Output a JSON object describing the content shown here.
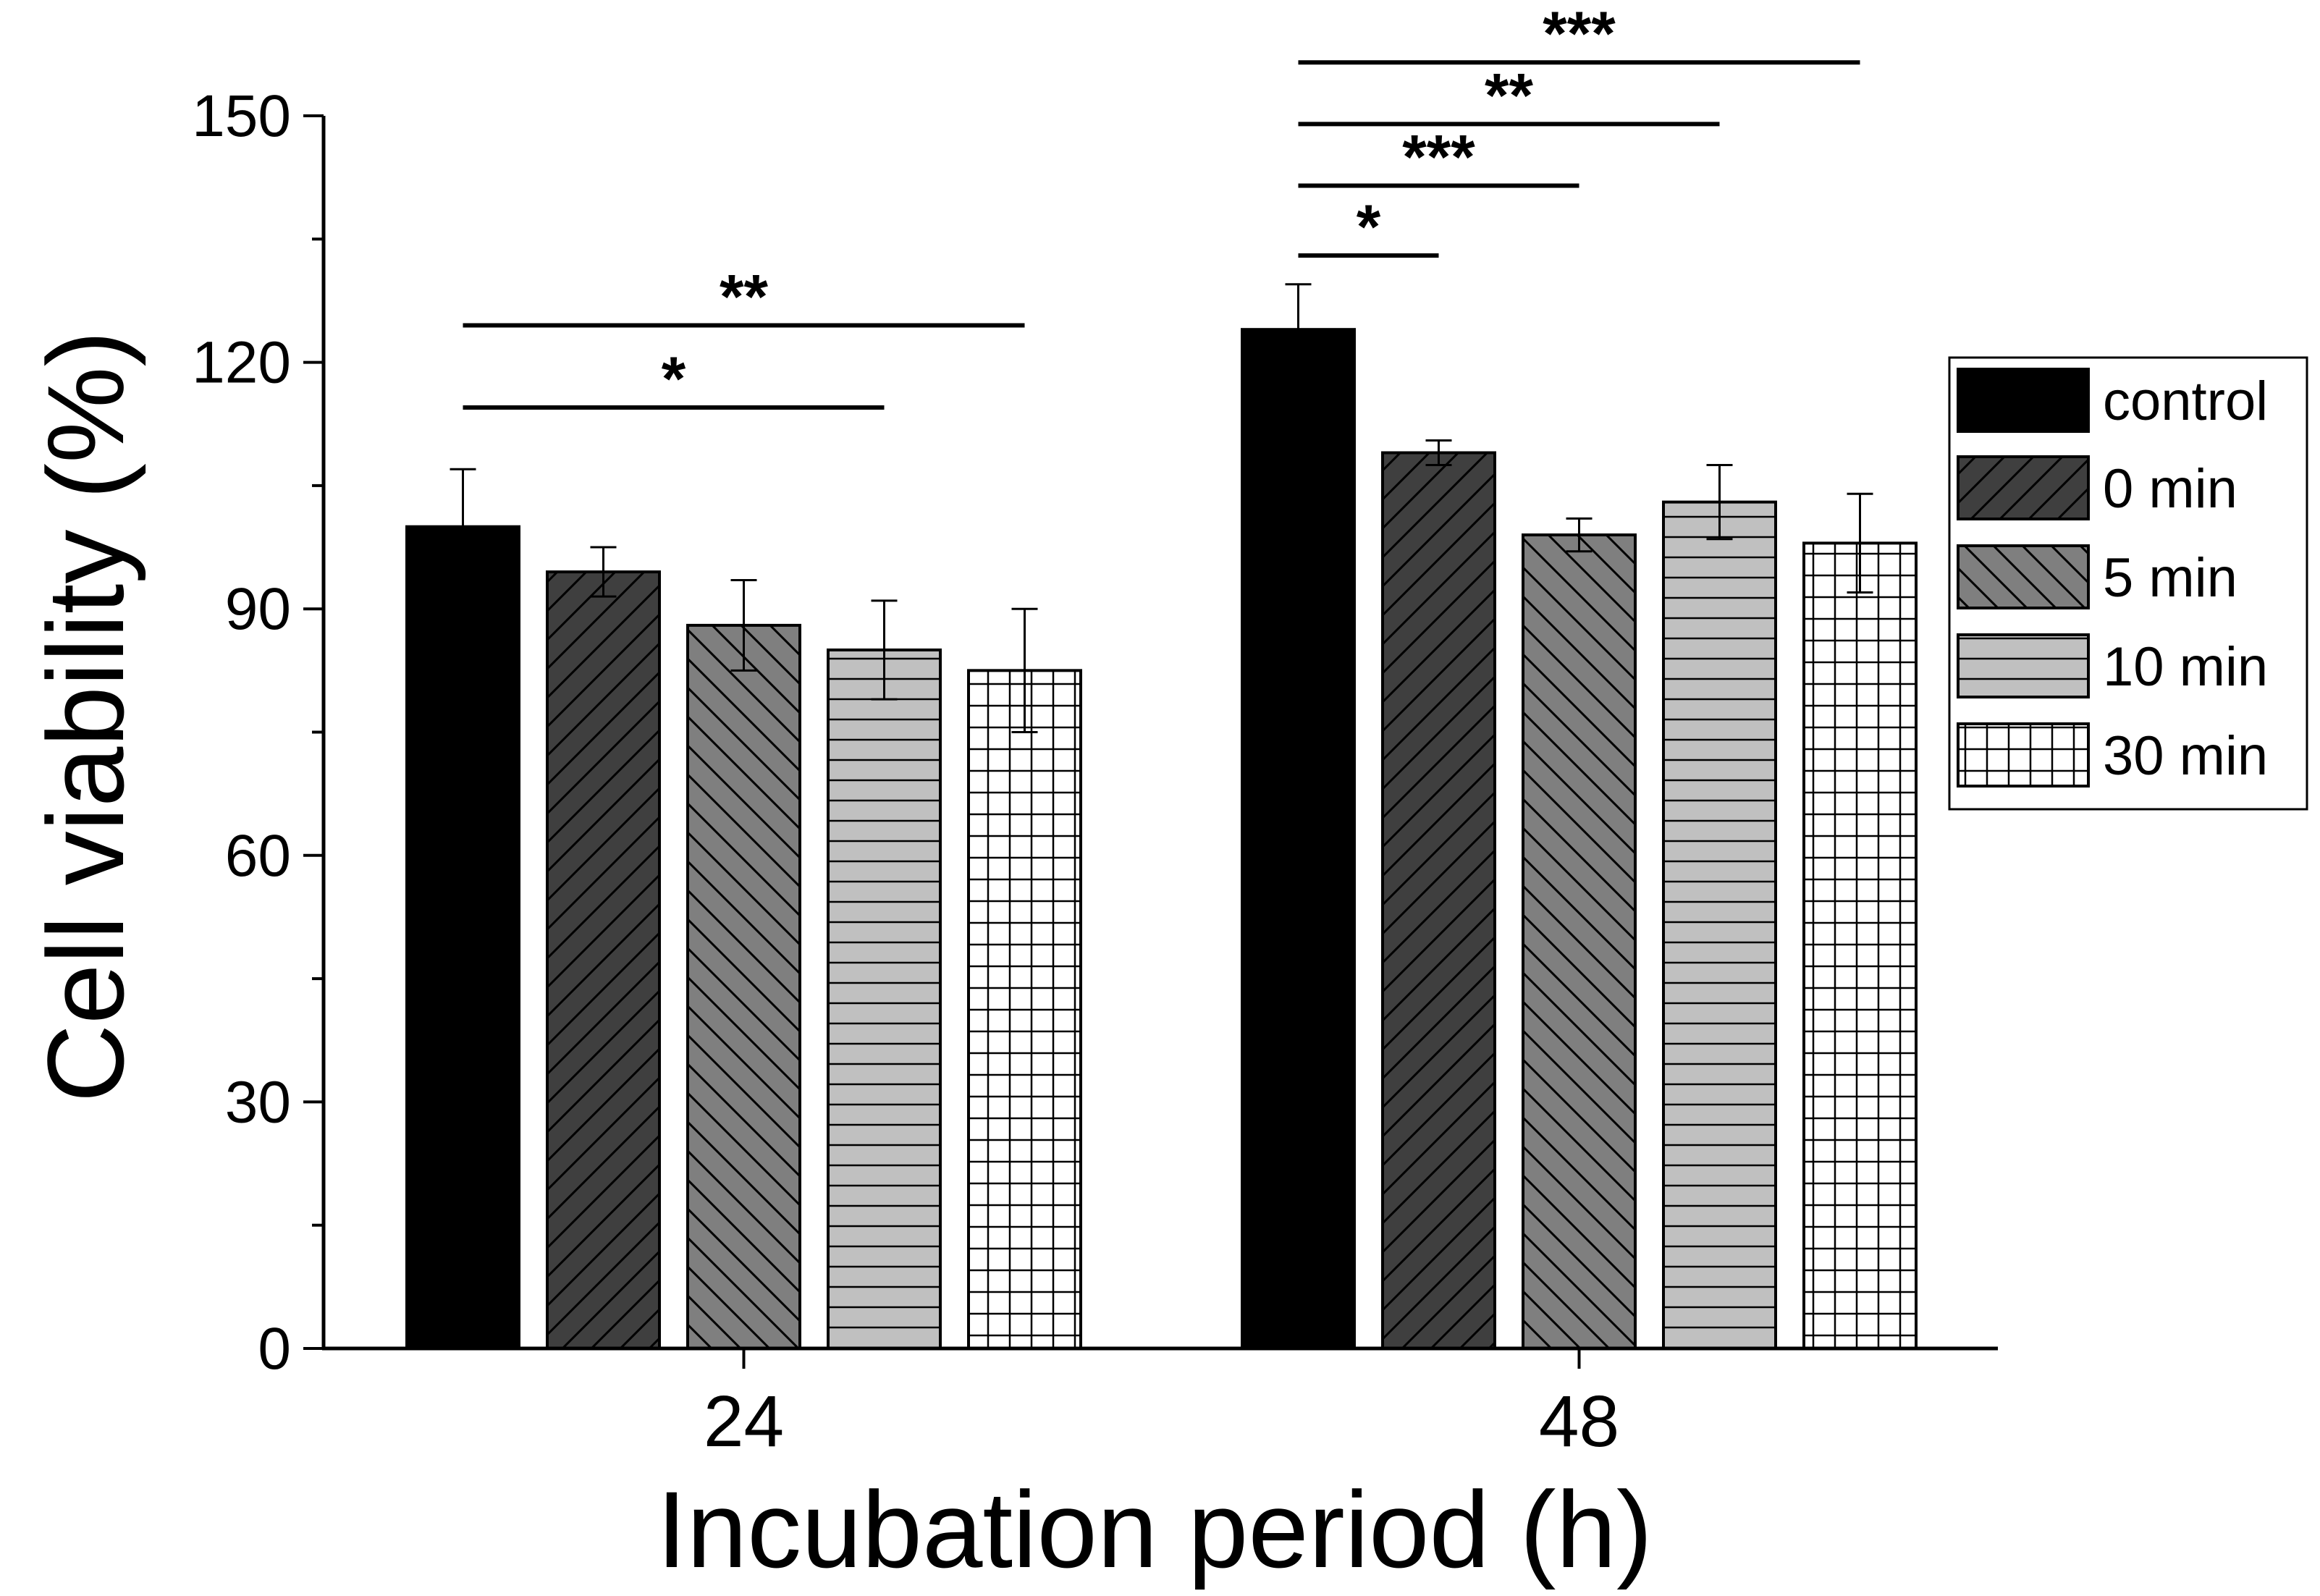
{
  "chart_data": {
    "type": "bar",
    "title": "",
    "xlabel": "Incubation period (h)",
    "ylabel": "Cell viability (%)",
    "categories": [
      "24",
      "48"
    ],
    "ylim": [
      0,
      150
    ],
    "yticks": [
      "0",
      "30",
      "60",
      "90",
      "120",
      "150"
    ],
    "grid": false,
    "legend_position": "right",
    "series": [
      {
        "name": "control",
        "values": [
          100,
          124
        ],
        "errors": [
          7,
          5.5
        ],
        "fill": "#000000",
        "pattern": "solid"
      },
      {
        "name": "0 min",
        "values": [
          94.5,
          109
        ],
        "errors": [
          3,
          1.5
        ],
        "fill": "#3f3f3f",
        "pattern": "diagonal-up"
      },
      {
        "name": "5 min",
        "values": [
          88,
          99
        ],
        "errors": [
          5.5,
          2
        ],
        "fill": "#7f7f7f",
        "pattern": "diagonal-down"
      },
      {
        "name": "10 min",
        "values": [
          85,
          103
        ],
        "errors": [
          6,
          4.5
        ],
        "fill": "#c0c0c0",
        "pattern": "horizontal"
      },
      {
        "name": "30 min",
        "values": [
          82.5,
          98
        ],
        "errors": [
          7.5,
          6
        ],
        "fill": "#ffffff",
        "pattern": "grid"
      }
    ],
    "significance": [
      {
        "category": "24",
        "from_series": 0,
        "to_series": 3,
        "label": "*",
        "y": 114.5
      },
      {
        "category": "24",
        "from_series": 0,
        "to_series": 4,
        "label": "**",
        "y": 124.5
      },
      {
        "category": "48",
        "from_series": 0,
        "to_series": 1,
        "label": "*",
        "y": 133
      },
      {
        "category": "48",
        "from_series": 0,
        "to_series": 2,
        "label": "***",
        "y": 141.5
      },
      {
        "category": "48",
        "from_series": 0,
        "to_series": 3,
        "label": "**",
        "y": 149
      },
      {
        "category": "48",
        "from_series": 0,
        "to_series": 4,
        "label": "***",
        "y": 156.5
      }
    ]
  }
}
